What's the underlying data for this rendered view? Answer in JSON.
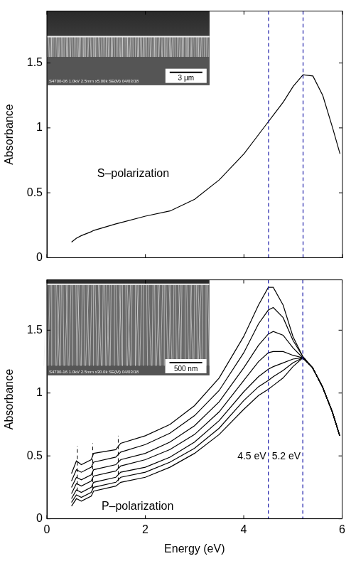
{
  "chart_data": [
    {
      "type": "line",
      "y_label": "Absorbance",
      "annotation": "S–polarization",
      "inset": {
        "caption": "S4700-06 1.0kV 2.5mm x5.00k SE(M) 04/03/18",
        "scale_bar": "3 μm"
      },
      "x": [
        0.5,
        0.6,
        0.7,
        0.9,
        0.95,
        1.4,
        1.5,
        2.0,
        2.5,
        3.0,
        3.5,
        4.0,
        4.3,
        4.5,
        4.6,
        4.8,
        5.0,
        5.2,
        5.4,
        5.6,
        5.8,
        5.95
      ],
      "series": [
        {
          "color": "#000000",
          "values": [
            0.12,
            0.15,
            0.17,
            0.2,
            0.21,
            0.26,
            0.27,
            0.32,
            0.36,
            0.45,
            0.6,
            0.8,
            0.95,
            1.05,
            1.1,
            1.2,
            1.32,
            1.41,
            1.4,
            1.25,
            1.0,
            0.8
          ]
        }
      ],
      "reference_lines": [
        {
          "x": 4.5,
          "color": "#1a1aa8",
          "line_style": "dashed"
        },
        {
          "x": 5.2,
          "color": "#1a1aa8",
          "line_style": "dashed"
        }
      ],
      "xlim": [
        0,
        6
      ],
      "xticks": [
        0,
        2,
        4,
        6
      ],
      "ylim": [
        0,
        1.9
      ],
      "yticks": [
        0,
        0.5,
        1,
        1.5
      ],
      "tick_labels": "y",
      "grid": false
    },
    {
      "type": "line",
      "x_label": "Energy (eV)",
      "y_label": "Absorbance",
      "annotation": "P–polarization",
      "inset": {
        "caption": "S4700-16 1.0kV 2.5mm x30.0k SE(M) 04/03/18",
        "scale_bar": "500 nm"
      },
      "x": [
        0.5,
        0.6,
        0.7,
        0.9,
        0.95,
        1.4,
        1.5,
        2.0,
        2.5,
        3.0,
        3.5,
        4.0,
        4.3,
        4.5,
        4.6,
        4.8,
        5.0,
        5.2,
        5.4,
        5.6,
        5.8,
        5.95
      ],
      "series": [
        {
          "color": "#000000",
          "values": [
            0.36,
            0.46,
            0.43,
            0.47,
            0.52,
            0.55,
            0.6,
            0.66,
            0.75,
            0.9,
            1.12,
            1.45,
            1.7,
            1.84,
            1.84,
            1.7,
            1.45,
            1.29,
            1.2,
            1.05,
            0.85,
            0.66
          ]
        },
        {
          "color": "#000000",
          "values": [
            0.3,
            0.39,
            0.37,
            0.41,
            0.45,
            0.49,
            0.53,
            0.59,
            0.68,
            0.82,
            1.02,
            1.32,
            1.55,
            1.66,
            1.68,
            1.6,
            1.42,
            1.29,
            1.2,
            1.05,
            0.85,
            0.66
          ]
        },
        {
          "color": "#000000",
          "values": [
            0.25,
            0.33,
            0.31,
            0.35,
            0.39,
            0.43,
            0.47,
            0.52,
            0.61,
            0.74,
            0.93,
            1.2,
            1.38,
            1.47,
            1.49,
            1.46,
            1.36,
            1.28,
            1.2,
            1.05,
            0.85,
            0.66
          ]
        },
        {
          "color": "#000000",
          "values": [
            0.2,
            0.28,
            0.26,
            0.3,
            0.34,
            0.38,
            0.42,
            0.47,
            0.55,
            0.67,
            0.85,
            1.1,
            1.25,
            1.32,
            1.33,
            1.33,
            1.3,
            1.28,
            1.2,
            1.05,
            0.85,
            0.66
          ]
        },
        {
          "color": "#000000",
          "values": [
            0.16,
            0.23,
            0.21,
            0.25,
            0.29,
            0.33,
            0.37,
            0.41,
            0.49,
            0.61,
            0.78,
            1.01,
            1.13,
            1.19,
            1.21,
            1.24,
            1.27,
            1.28,
            1.2,
            1.05,
            0.85,
            0.66
          ]
        },
        {
          "color": "#000000",
          "values": [
            0.13,
            0.19,
            0.17,
            0.21,
            0.25,
            0.29,
            0.33,
            0.37,
            0.45,
            0.56,
            0.72,
            0.94,
            1.05,
            1.1,
            1.13,
            1.18,
            1.24,
            1.28,
            1.2,
            1.05,
            0.85,
            0.66
          ]
        },
        {
          "color": "#000000",
          "values": [
            0.1,
            0.16,
            0.14,
            0.18,
            0.22,
            0.26,
            0.29,
            0.33,
            0.41,
            0.52,
            0.67,
            0.87,
            0.98,
            1.03,
            1.06,
            1.12,
            1.21,
            1.28,
            1.2,
            1.05,
            0.85,
            0.66
          ]
        }
      ],
      "reference_lines": [
        {
          "x": 4.5,
          "label": "4.5 eV",
          "color": "#1a1aa8",
          "line_style": "dashed"
        },
        {
          "x": 5.2,
          "label": "5.2 eV",
          "color": "#1a1aa8",
          "line_style": "dashed"
        }
      ],
      "feature_lines": [
        {
          "x": 0.62,
          "y": [
            0.22,
            0.58
          ],
          "color": "#000000",
          "line_style": "dashed"
        },
        {
          "x": 0.93,
          "y": [
            0.24,
            0.6
          ],
          "color": "#000000",
          "line_style": "dashed"
        },
        {
          "x": 1.45,
          "y": [
            0.3,
            0.66
          ],
          "color": "#000000",
          "line_style": "dashed"
        }
      ],
      "xlim": [
        0,
        6
      ],
      "xticks": [
        0,
        2,
        4,
        6
      ],
      "ylim": [
        0,
        1.9
      ],
      "yticks": [
        0,
        0.5,
        1,
        1.5
      ],
      "grid": false
    }
  ]
}
